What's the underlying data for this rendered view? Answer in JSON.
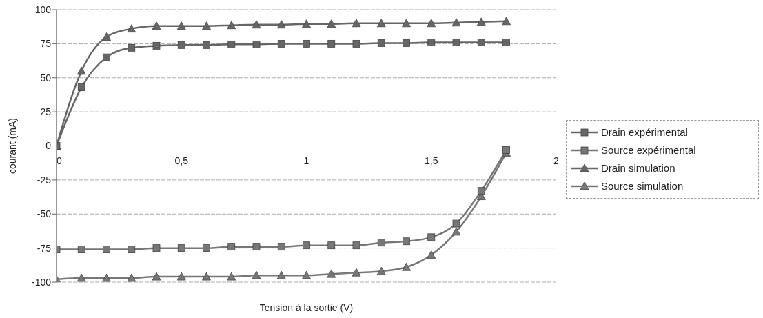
{
  "chart_data": {
    "type": "line",
    "xlabel": "Tension à la sortie (V)",
    "ylabel": "courant (mA)",
    "x": [
      0,
      0.1,
      0.2,
      0.3,
      0.4,
      0.5,
      0.6,
      0.7,
      0.8,
      0.9,
      1,
      1.1,
      1.2,
      1.3,
      1.4,
      1.5,
      1.6,
      1.7,
      1.8
    ],
    "series": [
      {
        "name": "Drain expérimental",
        "color": "#666666",
        "marker": "square",
        "values": [
          0,
          43,
          65,
          72,
          73.5,
          74,
          74,
          74.5,
          74.5,
          75,
          75,
          75,
          75,
          75.5,
          75.5,
          76,
          76,
          76,
          76
        ]
      },
      {
        "name": "Source expérimental",
        "color": "#777777",
        "marker": "square",
        "values": [
          -76,
          -76,
          -76,
          -76,
          -75,
          -75,
          -75,
          -74,
          -74,
          -74,
          -73,
          -73,
          -73,
          -71,
          -70,
          -67,
          -57,
          -33,
          -3
        ]
      },
      {
        "name": "Drain simulation",
        "color": "#666666",
        "marker": "triangle",
        "values": [
          0,
          55,
          80,
          86,
          88,
          88,
          88,
          88.5,
          89,
          89,
          89.5,
          89.5,
          90,
          90,
          90,
          90,
          90.5,
          91,
          91.5
        ]
      },
      {
        "name": "Source simulation",
        "color": "#777777",
        "marker": "triangle",
        "values": [
          -98,
          -97,
          -97,
          -97,
          -96,
          -96,
          -96,
          -96,
          -95,
          -95,
          -95,
          -94,
          -93,
          -92,
          -89,
          -80,
          -63,
          -37,
          -5
        ]
      }
    ],
    "xlim": [
      0,
      2
    ],
    "xticks": [
      0,
      {
        "value": 0.5,
        "label": "0,5"
      },
      1,
      {
        "value": 1.5,
        "label": "1,5"
      },
      2
    ],
    "ylim": [
      -100,
      100
    ],
    "yticks": [
      -100,
      -75,
      -50,
      -25,
      0,
      25,
      50,
      75,
      100
    ],
    "grid": "y",
    "legend": "right",
    "line_style": "solid"
  }
}
